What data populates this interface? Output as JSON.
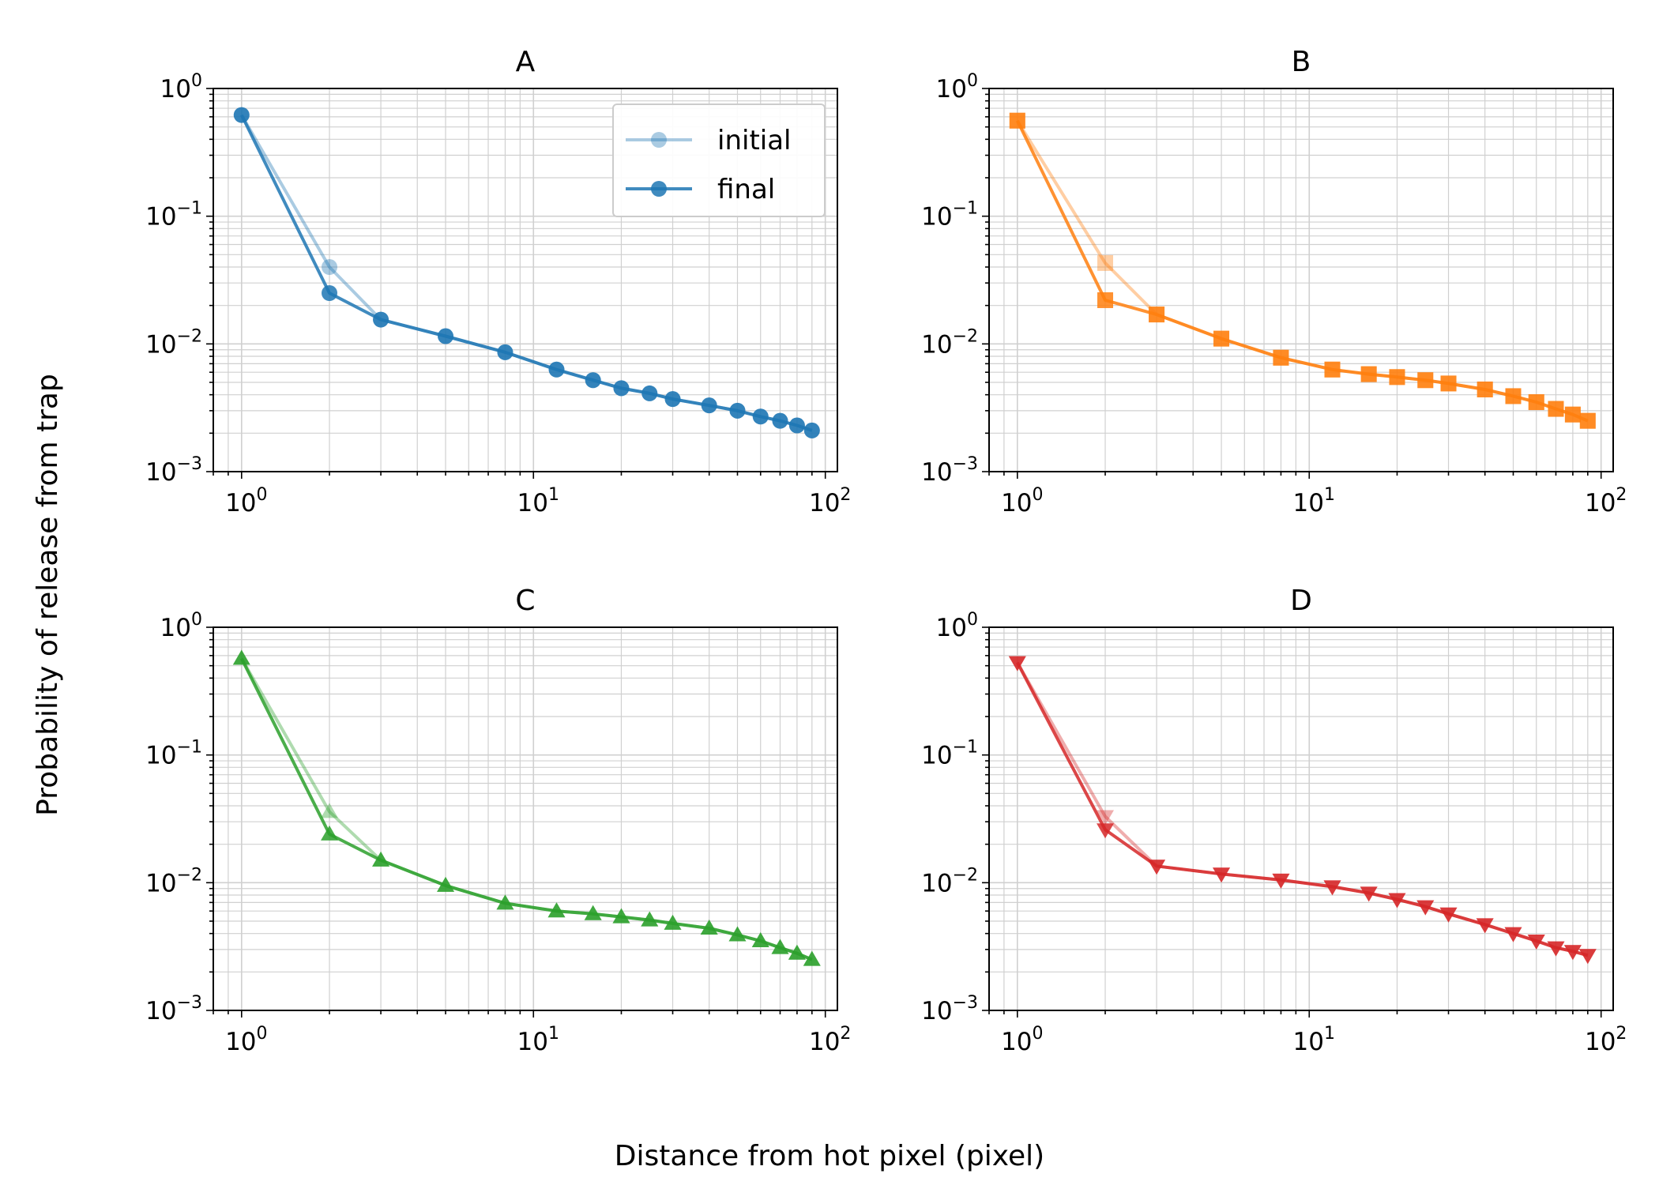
{
  "figure": {
    "ylabel": "Probability of release from trap",
    "xlabel": "Distance from hot pixel (pixel)"
  },
  "legend": {
    "initial_label": "initial",
    "final_label": "final"
  },
  "axis_ticks": {
    "x": [
      {
        "base": "10",
        "exp": "0"
      },
      {
        "base": "10",
        "exp": "1"
      },
      {
        "base": "10",
        "exp": "2"
      }
    ],
    "y": [
      {
        "base": "10",
        "exp": "0"
      },
      {
        "base": "10",
        "exp": "−1"
      },
      {
        "base": "10",
        "exp": "−2"
      },
      {
        "base": "10",
        "exp": "−3"
      }
    ]
  },
  "chart_data": [
    {
      "type": "line",
      "title": "A",
      "color": "#1f77b4",
      "marker": "circle",
      "xscale": "log",
      "yscale": "log",
      "xlim": [
        0.8,
        110
      ],
      "ylim": [
        0.001,
        1
      ],
      "grid": true,
      "legend_position": "top-right",
      "series": [
        {
          "name": "initial",
          "x": [
            1,
            2,
            3,
            5,
            8,
            12,
            16,
            20,
            25,
            30,
            40,
            50,
            60,
            70,
            80,
            90
          ],
          "y": [
            0.62,
            0.04,
            0.0155,
            0.0115,
            0.0086,
            0.0063,
            0.0052,
            0.0045,
            0.0041,
            0.0037,
            0.0033,
            0.003,
            0.0027,
            0.0025,
            0.0023,
            0.0021
          ]
        },
        {
          "name": "final",
          "x": [
            1,
            2,
            3,
            5,
            8,
            12,
            16,
            20,
            25,
            30,
            40,
            50,
            60,
            70,
            80,
            90
          ],
          "y": [
            0.62,
            0.025,
            0.0155,
            0.0115,
            0.0086,
            0.0063,
            0.0052,
            0.0045,
            0.0041,
            0.0037,
            0.0033,
            0.003,
            0.0027,
            0.0025,
            0.0023,
            0.0021
          ]
        }
      ]
    },
    {
      "type": "line",
      "title": "B",
      "color": "#ff7f0e",
      "marker": "square",
      "xscale": "log",
      "yscale": "log",
      "xlim": [
        0.8,
        110
      ],
      "ylim": [
        0.001,
        1
      ],
      "grid": true,
      "series": [
        {
          "name": "initial",
          "x": [
            1,
            2,
            3,
            5,
            8,
            12,
            16,
            20,
            25,
            30,
            40,
            50,
            60,
            70,
            80,
            90
          ],
          "y": [
            0.56,
            0.043,
            0.017,
            0.011,
            0.0078,
            0.0063,
            0.0058,
            0.0055,
            0.0052,
            0.0049,
            0.0044,
            0.0039,
            0.0035,
            0.0031,
            0.0028,
            0.0025
          ]
        },
        {
          "name": "final",
          "x": [
            1,
            2,
            3,
            5,
            8,
            12,
            16,
            20,
            25,
            30,
            40,
            50,
            60,
            70,
            80,
            90
          ],
          "y": [
            0.56,
            0.022,
            0.017,
            0.011,
            0.0078,
            0.0063,
            0.0058,
            0.0055,
            0.0052,
            0.0049,
            0.0044,
            0.0039,
            0.0035,
            0.0031,
            0.0028,
            0.0025
          ]
        }
      ]
    },
    {
      "type": "line",
      "title": "C",
      "color": "#2ca02c",
      "marker": "triangle-up",
      "xscale": "log",
      "yscale": "log",
      "xlim": [
        0.8,
        110
      ],
      "ylim": [
        0.001,
        1
      ],
      "grid": true,
      "series": [
        {
          "name": "initial",
          "x": [
            1,
            2,
            3,
            5,
            8,
            12,
            16,
            20,
            25,
            30,
            40,
            50,
            60,
            70,
            80,
            90
          ],
          "y": [
            0.57,
            0.036,
            0.015,
            0.0095,
            0.0069,
            0.006,
            0.0057,
            0.0054,
            0.0051,
            0.0048,
            0.0044,
            0.0039,
            0.0035,
            0.0031,
            0.0028,
            0.0025
          ]
        },
        {
          "name": "final",
          "x": [
            1,
            2,
            3,
            5,
            8,
            12,
            16,
            20,
            25,
            30,
            40,
            50,
            60,
            70,
            80,
            90
          ],
          "y": [
            0.57,
            0.024,
            0.015,
            0.0095,
            0.0069,
            0.006,
            0.0057,
            0.0054,
            0.0051,
            0.0048,
            0.0044,
            0.0039,
            0.0035,
            0.0031,
            0.0028,
            0.0025
          ]
        }
      ]
    },
    {
      "type": "line",
      "title": "D",
      "color": "#d62728",
      "marker": "triangle-down",
      "xscale": "log",
      "yscale": "log",
      "xlim": [
        0.8,
        110
      ],
      "ylim": [
        0.001,
        1
      ],
      "grid": true,
      "series": [
        {
          "name": "initial",
          "x": [
            1,
            2,
            3,
            5,
            8,
            12,
            16,
            20,
            25,
            30,
            40,
            50,
            60,
            70,
            80,
            90
          ],
          "y": [
            0.53,
            0.033,
            0.0135,
            0.0117,
            0.0105,
            0.0093,
            0.0083,
            0.0074,
            0.0065,
            0.0057,
            0.0047,
            0.004,
            0.0035,
            0.0031,
            0.0029,
            0.0027
          ]
        },
        {
          "name": "final",
          "x": [
            1,
            2,
            3,
            5,
            8,
            12,
            16,
            20,
            25,
            30,
            40,
            50,
            60,
            70,
            80,
            90
          ],
          "y": [
            0.53,
            0.026,
            0.0135,
            0.0117,
            0.0105,
            0.0093,
            0.0083,
            0.0074,
            0.0065,
            0.0057,
            0.0047,
            0.004,
            0.0035,
            0.0031,
            0.0029,
            0.0027
          ]
        }
      ]
    }
  ]
}
